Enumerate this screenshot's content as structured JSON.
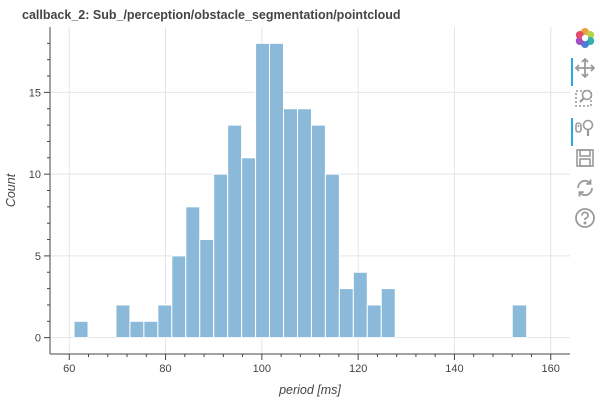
{
  "title": "callback_2: Sub_/perception/obstacle_segmentation/pointcloud",
  "toolbar": {
    "tools": [
      {
        "name": "bokeh-logo-icon",
        "label": ""
      },
      {
        "name": "pan-icon",
        "active": true
      },
      {
        "name": "box-zoom-icon",
        "active": false
      },
      {
        "name": "wheel-zoom-icon",
        "active": true
      },
      {
        "name": "save-icon",
        "active": false
      },
      {
        "name": "reset-icon",
        "active": false
      },
      {
        "name": "help-icon",
        "active": false
      }
    ],
    "active_color": "#26aae1"
  },
  "chart_data": {
    "type": "bar",
    "subtype": "histogram",
    "title": "callback_2: Sub_/perception/obstacle_segmentation/pointcloud",
    "xlabel": "period [ms]",
    "ylabel": "Count",
    "xlim": [
      56,
      164
    ],
    "ylim": [
      -1,
      19
    ],
    "xticks": [
      60,
      80,
      100,
      120,
      140,
      160
    ],
    "yticks": [
      0,
      5,
      10,
      15
    ],
    "grid": true,
    "bar_color": "#8ab9d9",
    "bar_edge_color": "#ffffff",
    "bins": [
      {
        "x0": 61.0,
        "x1": 63.9,
        "count": 1
      },
      {
        "x0": 63.9,
        "x1": 66.8,
        "count": 0
      },
      {
        "x0": 66.8,
        "x1": 69.7,
        "count": 0
      },
      {
        "x0": 69.7,
        "x1": 72.6,
        "count": 2
      },
      {
        "x0": 72.6,
        "x1": 75.5,
        "count": 1
      },
      {
        "x0": 75.5,
        "x1": 78.4,
        "count": 1
      },
      {
        "x0": 78.4,
        "x1": 81.3,
        "count": 2
      },
      {
        "x0": 81.3,
        "x1": 84.2,
        "count": 5
      },
      {
        "x0": 84.2,
        "x1": 87.1,
        "count": 8
      },
      {
        "x0": 87.1,
        "x1": 90.0,
        "count": 6
      },
      {
        "x0": 90.0,
        "x1": 92.9,
        "count": 10
      },
      {
        "x0": 92.9,
        "x1": 95.8,
        "count": 13
      },
      {
        "x0": 95.8,
        "x1": 98.7,
        "count": 11
      },
      {
        "x0": 98.7,
        "x1": 101.6,
        "count": 18
      },
      {
        "x0": 101.6,
        "x1": 104.5,
        "count": 18
      },
      {
        "x0": 104.5,
        "x1": 107.4,
        "count": 14
      },
      {
        "x0": 107.4,
        "x1": 110.3,
        "count": 14
      },
      {
        "x0": 110.3,
        "x1": 113.2,
        "count": 13
      },
      {
        "x0": 113.2,
        "x1": 116.1,
        "count": 10
      },
      {
        "x0": 116.1,
        "x1": 119.0,
        "count": 3
      },
      {
        "x0": 119.0,
        "x1": 121.9,
        "count": 4
      },
      {
        "x0": 121.9,
        "x1": 124.8,
        "count": 2
      },
      {
        "x0": 124.8,
        "x1": 127.7,
        "count": 3
      },
      {
        "x0": 127.7,
        "x1": 130.6,
        "count": 0
      },
      {
        "x0": 152.0,
        "x1": 155.0,
        "count": 2
      }
    ]
  }
}
